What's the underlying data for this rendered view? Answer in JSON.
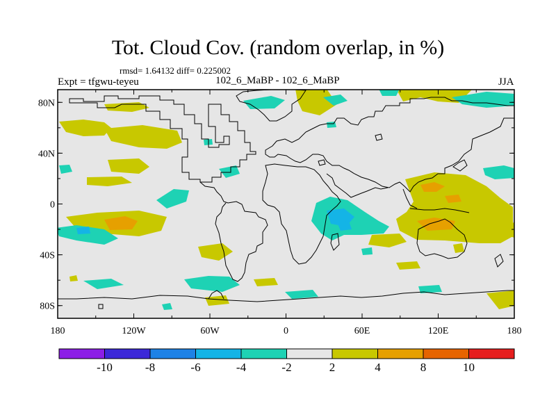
{
  "title": "Tot. Cloud Cov. (random overlap, in %)",
  "stats_line": "rmsd= 1.64132  diff= 0.225002",
  "left_label": "Expt = tfgwu-teyeu",
  "center_label": "102_6_MaBP - 102_6_MaBP",
  "right_label": "JJA",
  "map": {
    "projection": "cylindrical equidistant",
    "lon_range": [
      -180,
      180
    ],
    "lat_range": [
      -90,
      90
    ],
    "background_color": "#e6e6e6",
    "x_ticks": [
      {
        "lon": -180,
        "label": "180"
      },
      {
        "lon": -120,
        "label": "120W"
      },
      {
        "lon": -60,
        "label": "60W"
      },
      {
        "lon": 0,
        "label": "0"
      },
      {
        "lon": 60,
        "label": "60E"
      },
      {
        "lon": 120,
        "label": "120E"
      },
      {
        "lon": 180,
        "label": "180"
      }
    ],
    "y_ticks": [
      {
        "lat": 80,
        "label": "80N"
      },
      {
        "lat": 40,
        "label": "40N"
      },
      {
        "lat": 0,
        "label": "0"
      },
      {
        "lat": -40,
        "label": "40S"
      },
      {
        "lat": -80,
        "label": "80S"
      }
    ]
  },
  "colorbar": {
    "colors": [
      "#8c1ee6",
      "#3c28d8",
      "#1e82e6",
      "#14b4e6",
      "#1ed2b4",
      "#e6e6e6",
      "#c8c800",
      "#e6a000",
      "#e66400",
      "#e61e1e"
    ],
    "labels": [
      "-10",
      "-8",
      "-6",
      "-4",
      "-2",
      "2",
      "4",
      "8",
      "10"
    ]
  }
}
